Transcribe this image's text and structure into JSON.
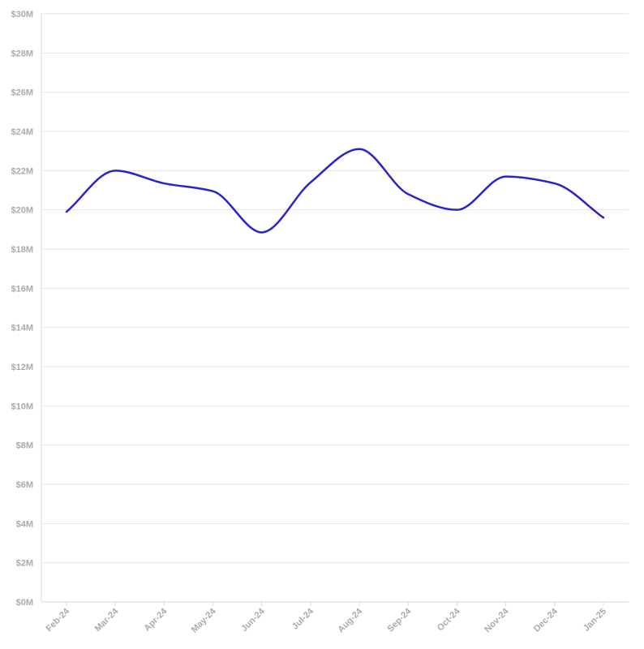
{
  "chart_data": {
    "type": "line",
    "title": "",
    "xlabel": "",
    "ylabel": "",
    "categories": [
      "Feb-24",
      "Mar-24",
      "Apr-24",
      "May-24",
      "Jun-24",
      "Jul-24",
      "Aug-24",
      "Sep-24",
      "Oct-24",
      "Nov-24",
      "Dec-24",
      "Jan-25"
    ],
    "series": [
      {
        "values": [
          19.9,
          22.0,
          21.35,
          20.95,
          18.85,
          21.4,
          23.1,
          20.8,
          20.0,
          21.7,
          21.35,
          19.6
        ],
        "color": "#2a22cc"
      }
    ],
    "ylim": [
      0,
      30
    ],
    "yticks": [
      0,
      2,
      4,
      6,
      8,
      10,
      12,
      14,
      16,
      18,
      20,
      22,
      24,
      26,
      28,
      30
    ],
    "ytick_labels": [
      "$0M",
      "$2M",
      "$4M",
      "$6M",
      "$8M",
      "$10M",
      "$12M",
      "$14M",
      "$16M",
      "$18M",
      "$20M",
      "$22M",
      "$24M",
      "$26M",
      "$28M",
      "$30M"
    ],
    "grid": true,
    "legend": "none"
  }
}
